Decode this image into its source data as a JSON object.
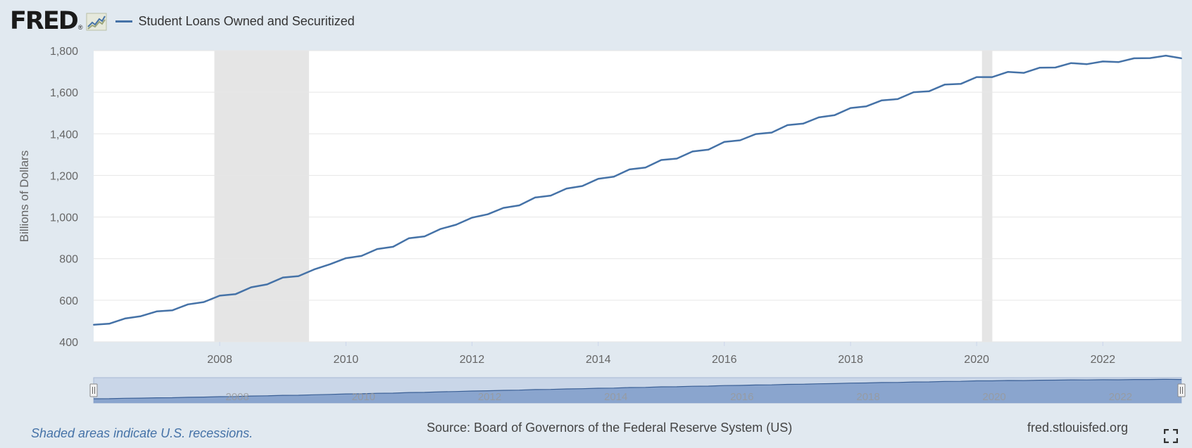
{
  "header": {
    "logo_text": "FRED",
    "logo_reg": "®",
    "logo_icon": "fred-chart-logo-icon",
    "legend_label": "Student Loans Owned and Securitized"
  },
  "footer": {
    "recession_note": "Shaded areas indicate U.S. recessions.",
    "source": "Source: Board of Governors of the Federal Reserve System (US)",
    "site": "fred.stlouisfed.org",
    "fullscreen_icon": "fullscreen-icon"
  },
  "colors": {
    "series": "#4572a7",
    "recession": "#e5e5e5",
    "background": "#e1e9f0",
    "plot_bg": "#ffffff",
    "grid": "#e6e6e6"
  },
  "chart_data": {
    "type": "line",
    "title": "",
    "xlabel": "",
    "ylabel": "Billions of Dollars",
    "ylim": [
      400,
      1800
    ],
    "y_ticks": [
      "400",
      "600",
      "800",
      "1,000",
      "1,200",
      "1,400",
      "1,600",
      "1,800"
    ],
    "x_ticks": [
      "2008",
      "2010",
      "2012",
      "2014",
      "2016",
      "2018",
      "2020",
      "2022"
    ],
    "xlim": [
      "2006-01-01",
      "2023-04-01"
    ],
    "recessions": [
      {
        "start": "2007-12-01",
        "end": "2009-06-01"
      },
      {
        "start": "2020-02-01",
        "end": "2020-04-01"
      }
    ],
    "grid": true,
    "legend_position": "top-left",
    "navigator": {
      "labels": [
        "2008",
        "2010",
        "2012",
        "2014",
        "2016",
        "2018",
        "2020",
        "2022"
      ]
    },
    "series": [
      {
        "name": "Student Loans Owned and Securitized",
        "x": [
          "2006-01-01",
          "2006-04-01",
          "2006-07-01",
          "2006-10-01",
          "2007-01-01",
          "2007-04-01",
          "2007-07-01",
          "2007-10-01",
          "2008-01-01",
          "2008-04-01",
          "2008-07-01",
          "2008-10-01",
          "2009-01-01",
          "2009-04-01",
          "2009-07-01",
          "2009-10-01",
          "2010-01-01",
          "2010-04-01",
          "2010-07-01",
          "2010-10-01",
          "2011-01-01",
          "2011-04-01",
          "2011-07-01",
          "2011-10-01",
          "2012-01-01",
          "2012-04-01",
          "2012-07-01",
          "2012-10-01",
          "2013-01-01",
          "2013-04-01",
          "2013-07-01",
          "2013-10-01",
          "2014-01-01",
          "2014-04-01",
          "2014-07-01",
          "2014-10-01",
          "2015-01-01",
          "2015-04-01",
          "2015-07-01",
          "2015-10-01",
          "2016-01-01",
          "2016-04-01",
          "2016-07-01",
          "2016-10-01",
          "2017-01-01",
          "2017-04-01",
          "2017-07-01",
          "2017-10-01",
          "2018-01-01",
          "2018-04-01",
          "2018-07-01",
          "2018-10-01",
          "2019-01-01",
          "2019-04-01",
          "2019-07-01",
          "2019-10-01",
          "2020-01-01",
          "2020-04-01",
          "2020-07-01",
          "2020-10-01",
          "2021-01-01",
          "2021-04-01",
          "2021-07-01",
          "2021-10-01",
          "2022-01-01",
          "2022-04-01",
          "2022-07-01",
          "2022-10-01",
          "2023-01-01",
          "2023-04-01"
        ],
        "values": [
          482,
          487,
          512,
          523,
          546,
          551,
          580,
          591,
          622,
          629,
          662,
          676,
          709,
          716,
          748,
          773,
          802,
          813,
          846,
          857,
          898,
          907,
          942,
          963,
          997,
          1013,
          1044,
          1056,
          1094,
          1103,
          1137,
          1149,
          1184,
          1194,
          1229,
          1238,
          1274,
          1281,
          1315,
          1324,
          1361,
          1369,
          1399,
          1406,
          1442,
          1449,
          1479,
          1490,
          1524,
          1532,
          1561,
          1567,
          1600,
          1605,
          1637,
          1640,
          1673,
          1673,
          1698,
          1693,
          1718,
          1719,
          1740,
          1735,
          1748,
          1745,
          1763,
          1764,
          1776,
          1763
        ]
      }
    ]
  }
}
